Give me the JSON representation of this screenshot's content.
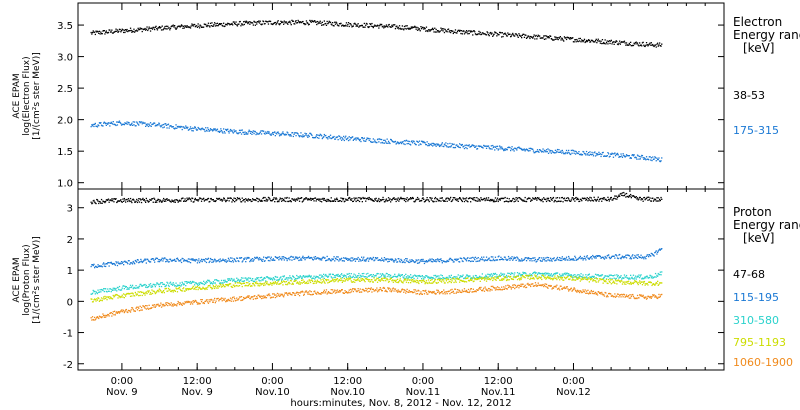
{
  "chart_data": [
    {
      "type": "scatter",
      "ylabel_lines": [
        "ACE EPAM",
        "log(Electron Flux)",
        "[1/(cm²s ster MeV)]"
      ],
      "ylim": [
        0.9,
        3.85
      ],
      "yticks": [
        1.0,
        1.5,
        2.0,
        2.5,
        3.0,
        3.5
      ],
      "ytick_labels": [
        "1.0",
        "1.5",
        "2.0",
        "2.5",
        "3.0",
        "3.5"
      ],
      "legend_title_lines": [
        "Electron",
        "Energy ranges",
        "[keV]"
      ],
      "series": [
        {
          "name": "38-53",
          "color": "#000000",
          "x": [
            -5,
            0,
            6,
            12,
            18,
            24,
            30,
            36,
            42,
            48,
            54,
            60,
            66,
            72,
            78,
            84,
            86
          ],
          "y": [
            3.38,
            3.42,
            3.46,
            3.5,
            3.53,
            3.55,
            3.55,
            3.52,
            3.49,
            3.45,
            3.4,
            3.36,
            3.32,
            3.28,
            3.24,
            3.2,
            3.19
          ]
        },
        {
          "name": "175-315",
          "color": "#1a78d4",
          "x": [
            -5,
            0,
            6,
            12,
            18,
            24,
            30,
            36,
            42,
            48,
            54,
            60,
            66,
            72,
            78,
            84,
            86
          ],
          "y": [
            1.92,
            1.96,
            1.92,
            1.86,
            1.82,
            1.79,
            1.76,
            1.71,
            1.67,
            1.63,
            1.59,
            1.56,
            1.52,
            1.49,
            1.45,
            1.4,
            1.37
          ]
        }
      ]
    },
    {
      "type": "scatter",
      "ylabel_lines": [
        "ACE EPAM",
        "log(Proton Flux)",
        "[1/(cm²s ster MeV)]"
      ],
      "ylim": [
        -2.2,
        3.6
      ],
      "yticks": [
        -2,
        -1,
        0,
        1,
        2,
        3
      ],
      "ytick_labels": [
        "-2",
        "-1",
        "0",
        "1",
        "2",
        "3"
      ],
      "legend_title_lines": [
        "Proton",
        "Energy ranges",
        "[keV]"
      ],
      "series": [
        {
          "name": "47-68",
          "color": "#000000",
          "x": [
            -5,
            0,
            12,
            24,
            36,
            48,
            60,
            72,
            78,
            80,
            82,
            86
          ],
          "y": [
            3.22,
            3.25,
            3.27,
            3.28,
            3.28,
            3.28,
            3.28,
            3.28,
            3.29,
            3.45,
            3.3,
            3.28
          ]
        },
        {
          "name": "115-195",
          "color": "#1a78d4",
          "x": [
            -5,
            0,
            6,
            12,
            18,
            24,
            30,
            36,
            42,
            48,
            54,
            60,
            66,
            72,
            78,
            84,
            86
          ],
          "y": [
            1.15,
            1.25,
            1.35,
            1.32,
            1.35,
            1.38,
            1.4,
            1.38,
            1.35,
            1.3,
            1.35,
            1.4,
            1.35,
            1.4,
            1.45,
            1.45,
            1.7
          ]
        },
        {
          "name": "310-580",
          "color": "#2ad2cc",
          "x": [
            -5,
            0,
            6,
            12,
            18,
            24,
            30,
            36,
            42,
            48,
            54,
            60,
            66,
            72,
            78,
            84,
            86
          ],
          "y": [
            0.3,
            0.45,
            0.55,
            0.6,
            0.7,
            0.75,
            0.8,
            0.85,
            0.85,
            0.8,
            0.8,
            0.85,
            0.9,
            0.85,
            0.8,
            0.8,
            0.9
          ]
        },
        {
          "name": "795-1193",
          "color": "#ccdd00",
          "x": [
            -5,
            0,
            6,
            12,
            18,
            24,
            30,
            36,
            42,
            48,
            54,
            60,
            66,
            72,
            78,
            84,
            86
          ],
          "y": [
            0.05,
            0.2,
            0.35,
            0.45,
            0.55,
            0.6,
            0.65,
            0.7,
            0.7,
            0.65,
            0.7,
            0.75,
            0.8,
            0.75,
            0.65,
            0.6,
            0.6
          ]
        },
        {
          "name": "1060-1900",
          "color": "#f08a1c",
          "x": [
            -5,
            0,
            6,
            12,
            18,
            24,
            30,
            36,
            42,
            48,
            54,
            60,
            66,
            72,
            78,
            84,
            86
          ],
          "y": [
            -0.55,
            -0.3,
            -0.1,
            0.0,
            0.1,
            0.2,
            0.3,
            0.35,
            0.4,
            0.3,
            0.35,
            0.45,
            0.55,
            0.4,
            0.2,
            0.15,
            0.2
          ]
        }
      ]
    }
  ],
  "x_axis": {
    "xlim": [
      -7,
      96
    ],
    "ticks": [
      0,
      24,
      48,
      72,
      96
    ],
    "minor_ticks": [
      3,
      6,
      9,
      12,
      15,
      18,
      21,
      27,
      30,
      33,
      36,
      39,
      42,
      45,
      51,
      54,
      57,
      60,
      63,
      66,
      69,
      75,
      78,
      81,
      84,
      87,
      90,
      93
    ],
    "tick_labels_time": [
      "0:00",
      "12:00",
      "0:00",
      "12:00",
      "0:00",
      "12:00",
      "0:00"
    ],
    "tick_labels_date": [
      "Nov. 9",
      "Nov. 9",
      "Nov.10",
      "Nov.10",
      "Nov.11",
      "Nov.11",
      "Nov.12"
    ],
    "label_ticks": [
      0,
      12,
      24,
      36,
      48,
      60,
      72
    ],
    "xlabel": "hours:minutes, Nov.  8, 2012 - Nov. 12, 2012"
  }
}
